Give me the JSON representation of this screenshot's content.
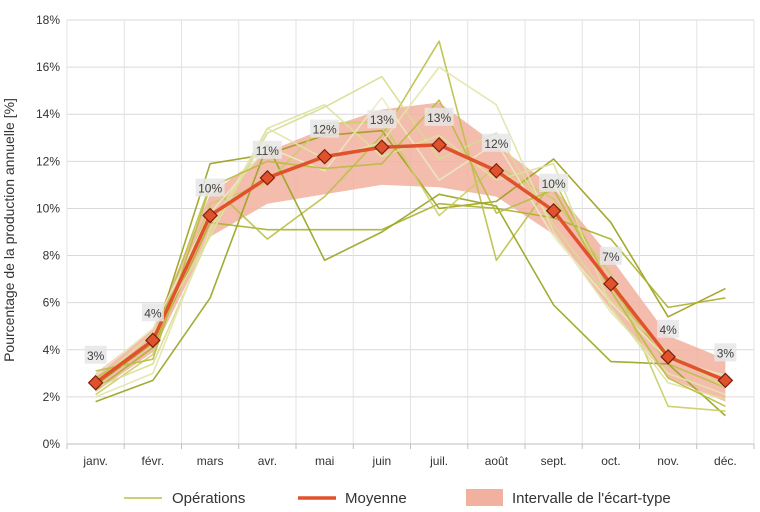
{
  "chart_data": {
    "type": "line",
    "ylabel": "Pourcentage de la production annuelle [%]",
    "xlabel": "",
    "categories": [
      "janv.",
      "févr.",
      "mars",
      "avr.",
      "mai",
      "juin",
      "juil.",
      "août",
      "sept.",
      "oct.",
      "nov.",
      "déc."
    ],
    "ylim": [
      0,
      18
    ],
    "yticks": [
      0,
      2,
      4,
      6,
      8,
      10,
      12,
      14,
      16,
      18
    ],
    "ytick_labels": [
      "0%",
      "2%",
      "4%",
      "6%",
      "8%",
      "10%",
      "12%",
      "14%",
      "16%",
      "18%"
    ],
    "grid": true,
    "legend_position": "bottom",
    "legend": {
      "operations": "Opérations",
      "mean": "Moyenne",
      "band": "Intervalle de l'écart-type"
    },
    "mean": {
      "name": "Moyenne",
      "color": "#E0522B",
      "values": [
        2.6,
        4.4,
        9.7,
        11.3,
        12.2,
        12.6,
        12.7,
        11.6,
        9.9,
        6.8,
        3.7,
        2.7
      ],
      "labels": [
        "3%",
        "4%",
        "10%",
        "11%",
        "12%",
        "13%",
        "13%",
        "12%",
        "10%",
        "7%",
        "4%",
        "3%"
      ]
    },
    "band": {
      "name": "Intervalle de l'écart-type",
      "color": "#F2B09E",
      "upper": [
        3.0,
        4.9,
        10.6,
        12.4,
        13.4,
        14.2,
        14.5,
        12.7,
        10.9,
        7.9,
        4.6,
        3.6
      ],
      "lower": [
        2.2,
        3.9,
        8.8,
        10.2,
        10.6,
        11.0,
        10.9,
        10.5,
        8.9,
        5.7,
        2.8,
        1.8
      ]
    },
    "operations": [
      {
        "color": "#9C9E1A",
        "values": [
          2.5,
          4.3,
          11.9,
          12.3,
          13.1,
          13.3,
          10.0,
          10.3,
          12.1,
          9.4,
          5.4,
          6.6
        ]
      },
      {
        "color": "#AAB12A",
        "values": [
          2.3,
          4.1,
          9.4,
          9.1,
          9.1,
          9.1,
          10.2,
          10.0,
          9.6,
          8.7,
          5.8,
          6.2
        ]
      },
      {
        "color": "#B9C046",
        "values": [
          2.8,
          4.3,
          11.0,
          8.7,
          10.5,
          13.1,
          17.1,
          7.8,
          11.2,
          6.7,
          3.4,
          2.4
        ]
      },
      {
        "color": "#98A31E",
        "values": [
          1.8,
          2.7,
          6.2,
          12.7,
          7.8,
          9.0,
          10.6,
          10.1,
          5.9,
          3.5,
          3.4,
          1.2
        ]
      },
      {
        "color": "#C9CD62",
        "values": [
          2.1,
          3.8,
          10.2,
          11.1,
          13.6,
          13.7,
          9.7,
          11.8,
          10.4,
          7.2,
          1.6,
          1.4
        ]
      },
      {
        "color": "#D8DC8E",
        "values": [
          2.4,
          3.4,
          8.9,
          13.2,
          14.3,
          15.6,
          12.1,
          13.2,
          9.3,
          6.1,
          3.9,
          2.4
        ]
      },
      {
        "color": "#E2E4A8",
        "values": [
          2.0,
          3.0,
          9.1,
          13.4,
          12.1,
          12.8,
          16.0,
          14.4,
          9.0,
          5.6,
          3.0,
          2.1
        ]
      },
      {
        "color": "#E9EBBE",
        "values": [
          2.9,
          4.9,
          9.8,
          12.6,
          11.6,
          14.7,
          11.2,
          12.8,
          8.8,
          6.0,
          3.6,
          2.9
        ]
      },
      {
        "color": "#DDE19B",
        "values": [
          2.6,
          4.7,
          8.8,
          13.4,
          14.4,
          12.2,
          13.1,
          11.2,
          11.9,
          5.8,
          2.6,
          1.9
        ]
      },
      {
        "color": "#B7BD3E",
        "values": [
          3.1,
          3.6,
          10.9,
          12.0,
          11.7,
          11.9,
          14.6,
          9.8,
          10.8,
          6.5,
          2.8,
          1.6
        ]
      }
    ]
  }
}
